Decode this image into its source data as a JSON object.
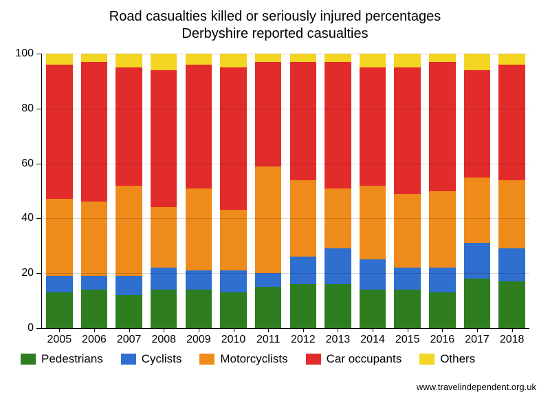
{
  "chart": {
    "type": "stacked-bar",
    "title_line1": "Road casualties killed or seriously injured percentages",
    "title_line2": "Derbyshire reported casualties",
    "title_fontsize": 20,
    "background_color": "#ffffff",
    "axis_color": "#000000",
    "grid_color": "#000000",
    "grid_opacity": 0.15,
    "ylim": [
      0,
      100
    ],
    "ytick_step": 20,
    "yticks": [
      0,
      20,
      40,
      60,
      80,
      100
    ],
    "axis_label_fontsize": 16,
    "bar_width_ratio": 0.76,
    "years": [
      "2005",
      "2006",
      "2007",
      "2008",
      "2009",
      "2010",
      "2011",
      "2012",
      "2013",
      "2014",
      "2015",
      "2016",
      "2017",
      "2018"
    ],
    "series": [
      {
        "key": "pedestrians",
        "label": "Pedestrians",
        "color": "#2e7d1e"
      },
      {
        "key": "cyclists",
        "label": "Cyclists",
        "color": "#2f6fd0"
      },
      {
        "key": "motorcyclists",
        "label": "Motorcyclists",
        "color": "#ef8b1a"
      },
      {
        "key": "car_occupants",
        "label": "Car occupants",
        "color": "#e22b2b"
      },
      {
        "key": "others",
        "label": "Others",
        "color": "#f4d521"
      }
    ],
    "data": {
      "pedestrians": [
        13,
        14,
        12,
        14,
        14,
        13,
        15,
        16,
        16,
        14,
        14,
        13,
        18,
        17
      ],
      "cyclists": [
        6,
        5,
        7,
        8,
        7,
        8,
        5,
        10,
        13,
        11,
        8,
        9,
        13,
        12
      ],
      "motorcyclists": [
        28,
        27,
        33,
        22,
        30,
        22,
        39,
        28,
        22,
        27,
        27,
        28,
        24,
        25
      ],
      "car_occupants": [
        49,
        51,
        43,
        50,
        45,
        52,
        38,
        43,
        46,
        43,
        46,
        47,
        39,
        42
      ],
      "others": [
        4,
        3,
        5,
        6,
        4,
        5,
        3,
        3,
        3,
        5,
        5,
        3,
        6,
        4
      ]
    },
    "legend_fontsize": 17,
    "source_text": "www.travelindependent.org.uk",
    "source_fontsize": 13
  }
}
